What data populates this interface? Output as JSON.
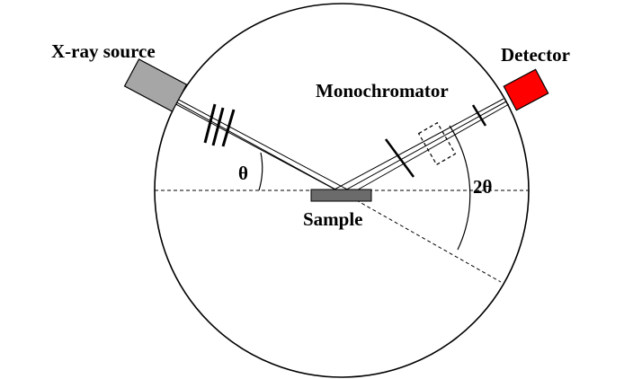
{
  "labels": {
    "source": "X-ray source",
    "detector": "Detector",
    "monochromator": "Monochromator",
    "sample": "Sample",
    "theta": "θ",
    "two_theta": "2θ"
  },
  "colors": {
    "source_fill": "#a6a6a6",
    "detector_fill": "#ff0000",
    "sample_fill": "#6b6b6b",
    "stroke": "#000000",
    "background": "#ffffff"
  }
}
